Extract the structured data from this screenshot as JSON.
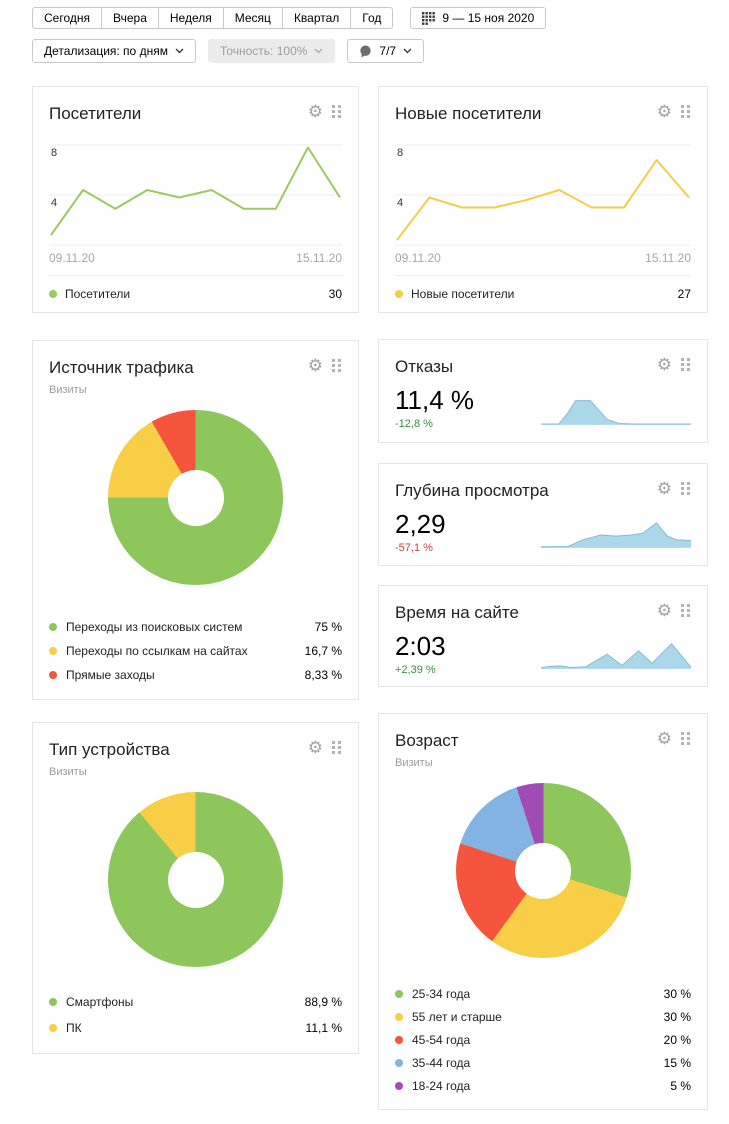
{
  "toolbar": {
    "tabs": [
      "Сегодня",
      "Вчера",
      "Неделя",
      "Месяц",
      "Квартал",
      "Год"
    ],
    "date_range": "9 — 15 ноя 2020",
    "detail_label": "Детализация: по дням",
    "accuracy_label": "Точность: 100%",
    "comments_label": "7/7"
  },
  "cards": {
    "visitors": {
      "title": "Посетители"
    },
    "new_visitors": {
      "title": "Новые посетители"
    },
    "traffic": {
      "title": "Источник трафика",
      "subtitle": "Визиты"
    },
    "bounces": {
      "title": "Отказы",
      "value": "11,4 %",
      "delta": "-12,8 %",
      "delta_color": "#3e8e41"
    },
    "depth": {
      "title": "Глубина просмотра",
      "value": "2,29",
      "delta": "-57,1 %",
      "delta_color": "#c0443f"
    },
    "time_on_site": {
      "title": "Время на сайте",
      "value": "2:03",
      "delta": "+2,39 %",
      "delta_color": "#3e8e41"
    },
    "device_type": {
      "title": "Тип устройства",
      "subtitle": "Визиты"
    },
    "age": {
      "title": "Возраст",
      "subtitle": "Визиты"
    }
  },
  "icons": {
    "gear_glyph": "⚙",
    "calendar": "dots-grid",
    "comments": "speech-bubble",
    "drag": "drag-handle-dots",
    "chevron": "chevron-down"
  },
  "colors": {
    "green": "#8dc65a",
    "yellow": "#f7ce46",
    "red": "#f4553c",
    "blue": "#82b3e3",
    "purple": "#a14cb5",
    "spark_fill": "#abd7ea",
    "spark_stroke": "#85bcd6",
    "grid": "#ededed"
  },
  "chart_data": [
    {
      "id": "visitors",
      "type": "line",
      "series_name": "Посетители",
      "total": 30,
      "color": "#9cc964",
      "ylim": [
        0,
        8
      ],
      "yticks": [
        "8",
        "4"
      ],
      "ytick_values": [
        8,
        4,
        0
      ],
      "x_labels": [
        "09.11.20",
        "15.11.20"
      ],
      "values": [
        0.8,
        4.4,
        2.9,
        4.4,
        3.8,
        4.4,
        2.9,
        2.9,
        7.8,
        3.8
      ],
      "legend_position": "bottom",
      "grid": true
    },
    {
      "id": "new_visitors",
      "type": "line",
      "series_name": "Новые посетители",
      "total": 27,
      "color": "#f2ce4b",
      "ylim": [
        0,
        8
      ],
      "yticks": [
        "8",
        "4"
      ],
      "ytick_values": [
        8,
        4,
        0
      ],
      "x_labels": [
        "09.11.20",
        "15.11.20"
      ],
      "values": [
        0.4,
        3.8,
        3.0,
        3.0,
        3.6,
        4.4,
        3.0,
        3.0,
        6.8,
        3.8
      ],
      "legend_position": "bottom",
      "grid": true
    },
    {
      "id": "traffic_sources",
      "type": "pie",
      "metric": "Визиты",
      "slices": [
        {
          "label": "Переходы из поисковых систем",
          "value": 75,
          "pct": "75 %",
          "color": "#8dc65a"
        },
        {
          "label": "Переходы по ссылкам на сайтах",
          "value": 16.67,
          "pct": "16,7 %",
          "color": "#f7ce46"
        },
        {
          "label": "Прямые заходы",
          "value": 8.33,
          "pct": "8,33 %",
          "color": "#f4553c"
        }
      ]
    },
    {
      "id": "bounces_spark",
      "type": "area",
      "value": "11,4 %",
      "delta": "-12,8 %",
      "fill": "#abd7ea",
      "stroke": "#85bcd6",
      "points": [
        [
          0,
          0.02
        ],
        [
          0.12,
          0.02
        ],
        [
          0.18,
          0.45
        ],
        [
          0.23,
          0.92
        ],
        [
          0.33,
          0.92
        ],
        [
          0.37,
          0.65
        ],
        [
          0.44,
          0.2
        ],
        [
          0.52,
          0.04
        ],
        [
          0.62,
          0.02
        ],
        [
          1,
          0.02
        ]
      ]
    },
    {
      "id": "depth_spark",
      "type": "area",
      "value": "2,29",
      "delta": "-57,1 %",
      "fill": "#abd7ea",
      "stroke": "#85bcd6",
      "points": [
        [
          0,
          0.03
        ],
        [
          0.18,
          0.04
        ],
        [
          0.28,
          0.3
        ],
        [
          0.4,
          0.48
        ],
        [
          0.5,
          0.44
        ],
        [
          0.6,
          0.48
        ],
        [
          0.68,
          0.55
        ],
        [
          0.77,
          0.95
        ],
        [
          0.84,
          0.45
        ],
        [
          0.9,
          0.3
        ],
        [
          1,
          0.27
        ]
      ]
    },
    {
      "id": "time_spark",
      "type": "area",
      "value": "2:03",
      "delta": "+2,39 %",
      "fill": "#abd7ea",
      "stroke": "#85bcd6",
      "points": [
        [
          0,
          0.03
        ],
        [
          0.06,
          0.08
        ],
        [
          0.13,
          0.1
        ],
        [
          0.2,
          0.04
        ],
        [
          0.3,
          0.07
        ],
        [
          0.44,
          0.55
        ],
        [
          0.54,
          0.12
        ],
        [
          0.65,
          0.68
        ],
        [
          0.74,
          0.2
        ],
        [
          0.87,
          0.95
        ],
        [
          1,
          0.05
        ]
      ]
    },
    {
      "id": "device_type",
      "type": "pie",
      "metric": "Визиты",
      "slices": [
        {
          "label": "Смартфоны",
          "value": 88.9,
          "pct": "88,9 %",
          "color": "#8dc65a"
        },
        {
          "label": "ПК",
          "value": 11.1,
          "pct": "11,1 %",
          "color": "#f7ce46"
        }
      ]
    },
    {
      "id": "age",
      "type": "pie",
      "metric": "Визиты",
      "slices": [
        {
          "label": "25-34 года",
          "value": 30,
          "pct": "30 %",
          "color": "#8dc65a"
        },
        {
          "label": "55 лет и старше",
          "value": 30,
          "pct": "30 %",
          "color": "#f7ce46"
        },
        {
          "label": "45-54 года",
          "value": 20,
          "pct": "20 %",
          "color": "#f4553c"
        },
        {
          "label": "35-44 года",
          "value": 15,
          "pct": "15 %",
          "color": "#82b3e3"
        },
        {
          "label": "18-24 года",
          "value": 5,
          "pct": "5 %",
          "color": "#a14cb5"
        }
      ]
    }
  ]
}
